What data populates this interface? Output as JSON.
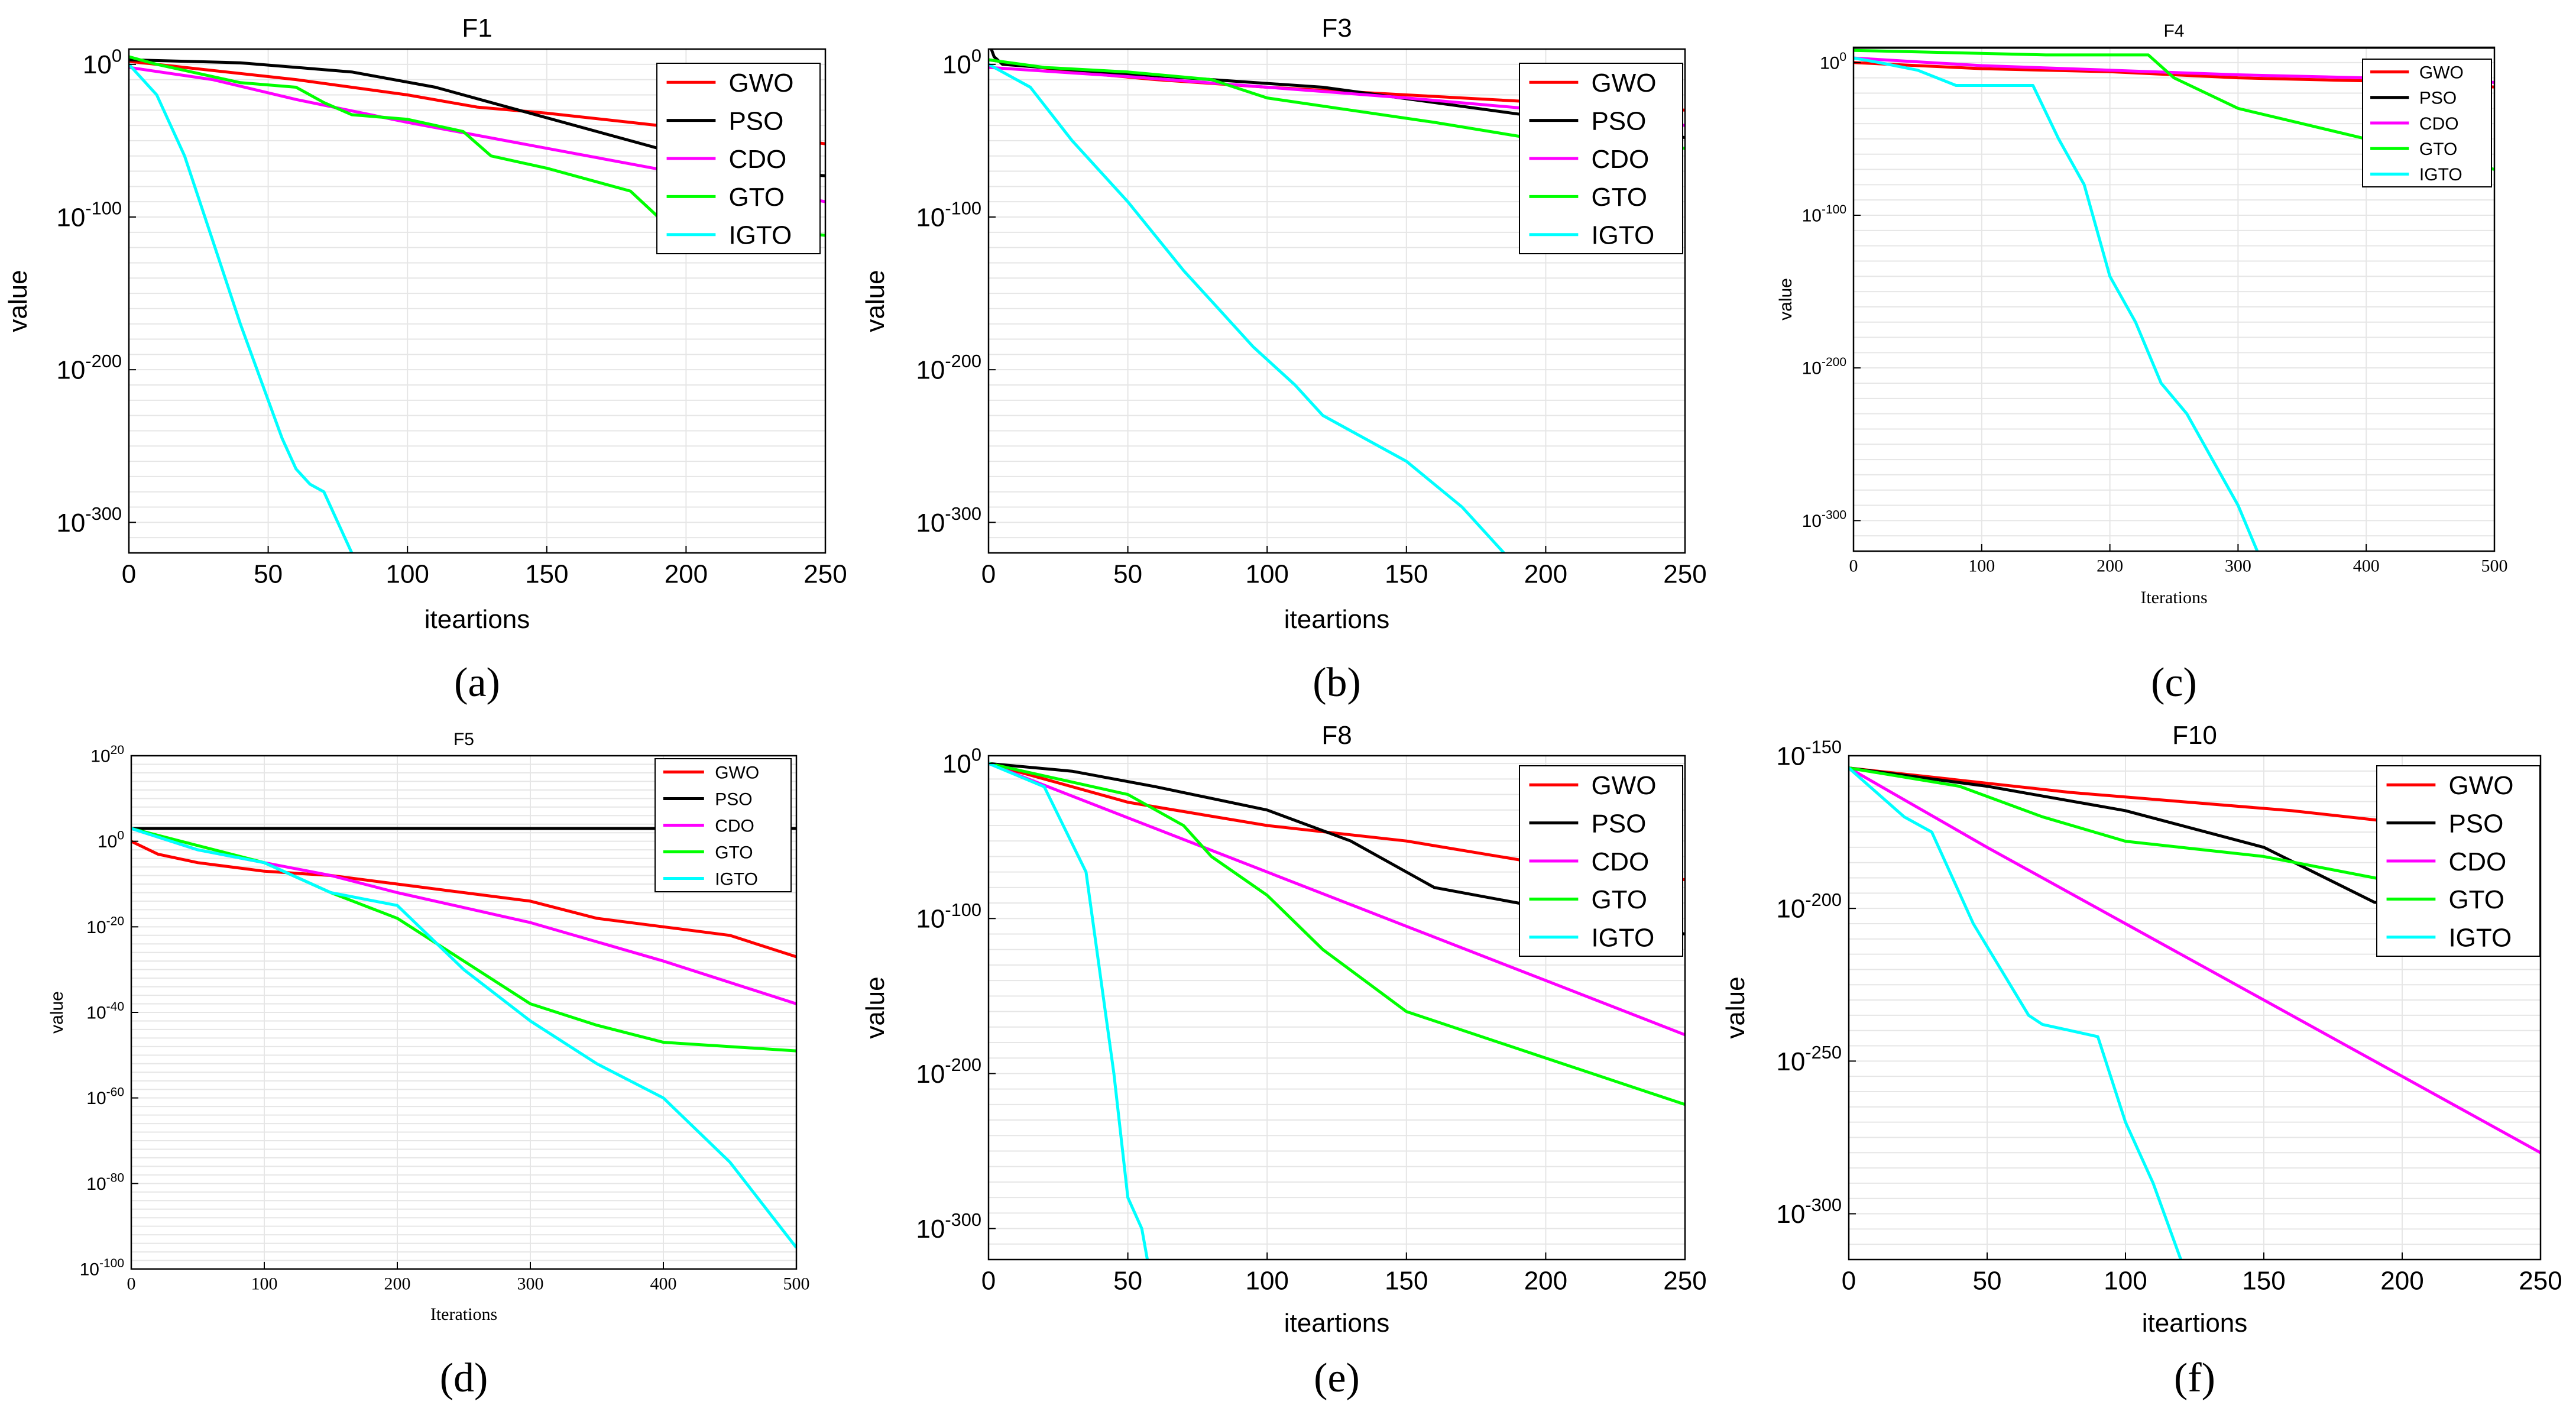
{
  "figure": {
    "panel_labels": [
      "(a)",
      "(b)",
      "(c)",
      "(d)",
      "(e)",
      "(f)"
    ]
  },
  "colors": {
    "GWO": "#ff0000",
    "PSO": "#000000",
    "CDO": "#ff00ff",
    "GTO": "#00ff00",
    "IGTO": "#00ffff",
    "grid": "#e6e6e6",
    "axis": "#000000"
  },
  "chart_data": [
    {
      "type": "line",
      "title": "F1",
      "panel_label": "(a)",
      "xlabel": "iteartions",
      "ylabel": "value",
      "y_scale": "log",
      "xlim": [
        0,
        250
      ],
      "ylim_exp": [
        -320,
        10
      ],
      "xticks": [
        0,
        50,
        100,
        150,
        200,
        250
      ],
      "yticks_exp": [
        0,
        -100,
        -200,
        -300
      ],
      "legend_position": "top-right",
      "series": [
        {
          "name": "GWO",
          "x": [
            0,
            20,
            60,
            100,
            125,
            150,
            190,
            220,
            250
          ],
          "y_exp": [
            2,
            -2,
            -10,
            -20,
            -28,
            -32,
            -40,
            -45,
            -52
          ]
        },
        {
          "name": "PSO",
          "x": [
            0,
            40,
            80,
            110,
            140,
            170,
            200,
            230,
            250
          ],
          "y_exp": [
            3,
            1,
            -5,
            -15,
            -30,
            -45,
            -60,
            -70,
            -73
          ]
        },
        {
          "name": "CDO",
          "x": [
            0,
            30,
            60,
            100,
            150,
            200,
            250
          ],
          "y_exp": [
            -2,
            -10,
            -23,
            -38,
            -55,
            -72,
            -90
          ]
        },
        {
          "name": "GTO",
          "x": [
            0,
            10,
            20,
            40,
            60,
            70,
            80,
            100,
            120,
            130,
            150,
            160,
            180,
            190,
            250
          ],
          "y_exp": [
            5,
            0,
            -4,
            -12,
            -15,
            -25,
            -33,
            -36,
            -44,
            -60,
            -68,
            -73,
            -83,
            -100,
            -112
          ]
        },
        {
          "name": "IGTO",
          "x": [
            0,
            10,
            20,
            30,
            40,
            50,
            55,
            60,
            65,
            70,
            75,
            80
          ],
          "y_exp": [
            0,
            -20,
            -60,
            -115,
            -170,
            -220,
            -245,
            -265,
            -275,
            -280,
            -300,
            -320
          ]
        }
      ]
    },
    {
      "type": "line",
      "title": "F3",
      "panel_label": "(b)",
      "xlabel": "iteartions",
      "ylabel": "value",
      "y_scale": "log",
      "xlim": [
        0,
        250
      ],
      "ylim_exp": [
        -320,
        10
      ],
      "xticks": [
        0,
        50,
        100,
        150,
        200,
        250
      ],
      "yticks_exp": [
        0,
        -100,
        -200,
        -300
      ],
      "legend_position": "top-right",
      "series": [
        {
          "name": "GWO",
          "x": [
            0,
            30,
            60,
            100,
            150,
            200,
            250
          ],
          "y_exp": [
            3,
            -5,
            -10,
            -15,
            -20,
            -25,
            -30
          ]
        },
        {
          "name": "PSO",
          "x": [
            0,
            2,
            5,
            40,
            80,
            120,
            160,
            200,
            250
          ],
          "y_exp": [
            15,
            5,
            0,
            -5,
            -10,
            -15,
            -25,
            -35,
            -48
          ]
        },
        {
          "name": "CDO",
          "x": [
            0,
            50,
            100,
            150,
            200,
            250
          ],
          "y_exp": [
            -2,
            -8,
            -15,
            -22,
            -30,
            -40
          ]
        },
        {
          "name": "GTO",
          "x": [
            0,
            20,
            50,
            80,
            100,
            130,
            160,
            200,
            250
          ],
          "y_exp": [
            3,
            -2,
            -5,
            -10,
            -22,
            -30,
            -38,
            -50,
            -55
          ]
        },
        {
          "name": "IGTO",
          "x": [
            0,
            15,
            30,
            50,
            70,
            80,
            95,
            110,
            120,
            130,
            150,
            170,
            185
          ],
          "y_exp": [
            0,
            -15,
            -50,
            -90,
            -135,
            -155,
            -185,
            -210,
            -230,
            -240,
            -260,
            -290,
            -320
          ]
        }
      ]
    },
    {
      "type": "line",
      "title": "F4",
      "panel_label": "(c)",
      "xlabel": "Iterations",
      "ylabel": "value",
      "y_scale": "log",
      "xlim": [
        0,
        500
      ],
      "ylim_exp": [
        -320,
        10
      ],
      "xticks": [
        0,
        100,
        200,
        300,
        400,
        500
      ],
      "yticks_exp": [
        0,
        -100,
        -200,
        -300
      ],
      "legend_position": "top-right",
      "series": [
        {
          "name": "GWO",
          "x": [
            0,
            100,
            200,
            300,
            400,
            500
          ],
          "y_exp": [
            0,
            -4,
            -6,
            -10,
            -12,
            -16
          ]
        },
        {
          "name": "PSO",
          "x": [
            0,
            100,
            200,
            300,
            400,
            500
          ],
          "y_exp": [
            10,
            10,
            10,
            10,
            10,
            10
          ]
        },
        {
          "name": "CDO",
          "x": [
            0,
            100,
            200,
            300,
            400,
            500
          ],
          "y_exp": [
            3,
            -2,
            -5,
            -8,
            -10,
            -13
          ]
        },
        {
          "name": "GTO",
          "x": [
            0,
            150,
            230,
            250,
            300,
            350,
            400,
            450,
            500
          ],
          "y_exp": [
            8,
            5,
            5,
            -10,
            -30,
            -40,
            -50,
            -60,
            -70
          ]
        },
        {
          "name": "IGTO",
          "x": [
            0,
            20,
            50,
            80,
            140,
            160,
            180,
            200,
            220,
            240,
            260,
            280,
            300,
            315
          ],
          "y_exp": [
            3,
            0,
            -5,
            -15,
            -15,
            -50,
            -80,
            -140,
            -170,
            -210,
            -230,
            -260,
            -290,
            -320
          ]
        }
      ]
    },
    {
      "type": "line",
      "title": "F5",
      "panel_label": "(d)",
      "xlabel": "Iterations",
      "ylabel": "value",
      "y_scale": "log",
      "xlim": [
        0,
        500
      ],
      "ylim_exp": [
        -100,
        20
      ],
      "xticks": [
        0,
        100,
        200,
        300,
        400,
        500
      ],
      "yticks_exp": [
        20,
        0,
        -20,
        -40,
        -60,
        -80,
        -100
      ],
      "legend_position": "top-right",
      "series": [
        {
          "name": "GWO",
          "x": [
            0,
            20,
            50,
            100,
            150,
            200,
            250,
            300,
            350,
            400,
            450,
            500
          ],
          "y_exp": [
            0,
            -3,
            -5,
            -7,
            -8,
            -10,
            -12,
            -14,
            -18,
            -20,
            -22,
            -27
          ]
        },
        {
          "name": "PSO",
          "x": [
            0,
            500
          ],
          "y_exp": [
            3,
            3
          ]
        },
        {
          "name": "CDO",
          "x": [
            0,
            50,
            100,
            150,
            200,
            300,
            400,
            500
          ],
          "y_exp": [
            3,
            -2,
            -5,
            -8,
            -12,
            -19,
            -28,
            -38
          ]
        },
        {
          "name": "GTO",
          "x": [
            0,
            50,
            100,
            150,
            200,
            250,
            300,
            350,
            400,
            450,
            500
          ],
          "y_exp": [
            3,
            -1,
            -5,
            -12,
            -18,
            -28,
            -38,
            -43,
            -47,
            -48,
            -49
          ]
        },
        {
          "name": "IGTO",
          "x": [
            0,
            50,
            100,
            150,
            200,
            250,
            300,
            350,
            400,
            450,
            500
          ],
          "y_exp": [
            3,
            -2,
            -5,
            -12,
            -15,
            -30,
            -42,
            -52,
            -60,
            -75,
            -95
          ]
        }
      ]
    },
    {
      "type": "line",
      "title": "F8",
      "panel_label": "(e)",
      "xlabel": "iteartions",
      "ylabel": "value",
      "y_scale": "log",
      "xlim": [
        0,
        250
      ],
      "ylim_exp": [
        -320,
        5
      ],
      "xticks": [
        0,
        50,
        100,
        150,
        200,
        250
      ],
      "yticks_exp": [
        0,
        -100,
        -200,
        -300
      ],
      "legend_position": "top-right",
      "series": [
        {
          "name": "GWO",
          "x": [
            0,
            20,
            50,
            100,
            150,
            200,
            250
          ],
          "y_exp": [
            0,
            -10,
            -25,
            -40,
            -50,
            -65,
            -75
          ]
        },
        {
          "name": "PSO",
          "x": [
            0,
            30,
            60,
            100,
            130,
            160,
            190,
            250
          ],
          "y_exp": [
            0,
            -5,
            -15,
            -30,
            -50,
            -80,
            -90,
            -110
          ]
        },
        {
          "name": "CDO",
          "x": [
            0,
            50,
            100,
            150,
            200,
            250
          ],
          "y_exp": [
            0,
            -35,
            -70,
            -105,
            -140,
            -175
          ]
        },
        {
          "name": "GTO",
          "x": [
            0,
            30,
            50,
            70,
            80,
            100,
            120,
            150,
            200,
            250
          ],
          "y_exp": [
            0,
            -12,
            -20,
            -40,
            -60,
            -85,
            -120,
            -160,
            -190,
            -220
          ]
        },
        {
          "name": "IGTO",
          "x": [
            0,
            20,
            35,
            45,
            50,
            55,
            57
          ],
          "y_exp": [
            0,
            -15,
            -70,
            -200,
            -280,
            -300,
            -320
          ]
        }
      ]
    },
    {
      "type": "line",
      "title": "F10",
      "panel_label": "(f)",
      "xlabel": "iteartions",
      "ylabel": "value",
      "y_scale": "log",
      "xlim": [
        0,
        250
      ],
      "ylim_exp": [
        -315,
        -150
      ],
      "xticks": [
        0,
        50,
        100,
        150,
        200,
        250
      ],
      "yticks_exp": [
        -150,
        -200,
        -250,
        -300
      ],
      "legend_position": "top-right",
      "series": [
        {
          "name": "GWO",
          "x": [
            0,
            40,
            80,
            120,
            160,
            200,
            250
          ],
          "y_exp": [
            -154,
            -158,
            -162,
            -165,
            -168,
            -172,
            -178
          ]
        },
        {
          "name": "PSO",
          "x": [
            0,
            50,
            100,
            150,
            190,
            250
          ],
          "y_exp": [
            -154,
            -160,
            -168,
            -180,
            -198,
            -200
          ]
        },
        {
          "name": "CDO",
          "x": [
            0,
            50,
            100,
            150,
            200,
            250
          ],
          "y_exp": [
            -154,
            -180,
            -205,
            -230,
            -255,
            -280
          ]
        },
        {
          "name": "GTO",
          "x": [
            0,
            40,
            70,
            100,
            150,
            190,
            250
          ],
          "y_exp": [
            -154,
            -160,
            -170,
            -178,
            -183,
            -190,
            -200
          ]
        },
        {
          "name": "IGTO",
          "x": [
            0,
            20,
            30,
            45,
            55,
            65,
            70,
            80,
            90,
            100,
            110,
            120
          ],
          "y_exp": [
            -154,
            -170,
            -175,
            -205,
            -220,
            -235,
            -238,
            -240,
            -242,
            -270,
            -290,
            -315
          ]
        }
      ]
    }
  ]
}
